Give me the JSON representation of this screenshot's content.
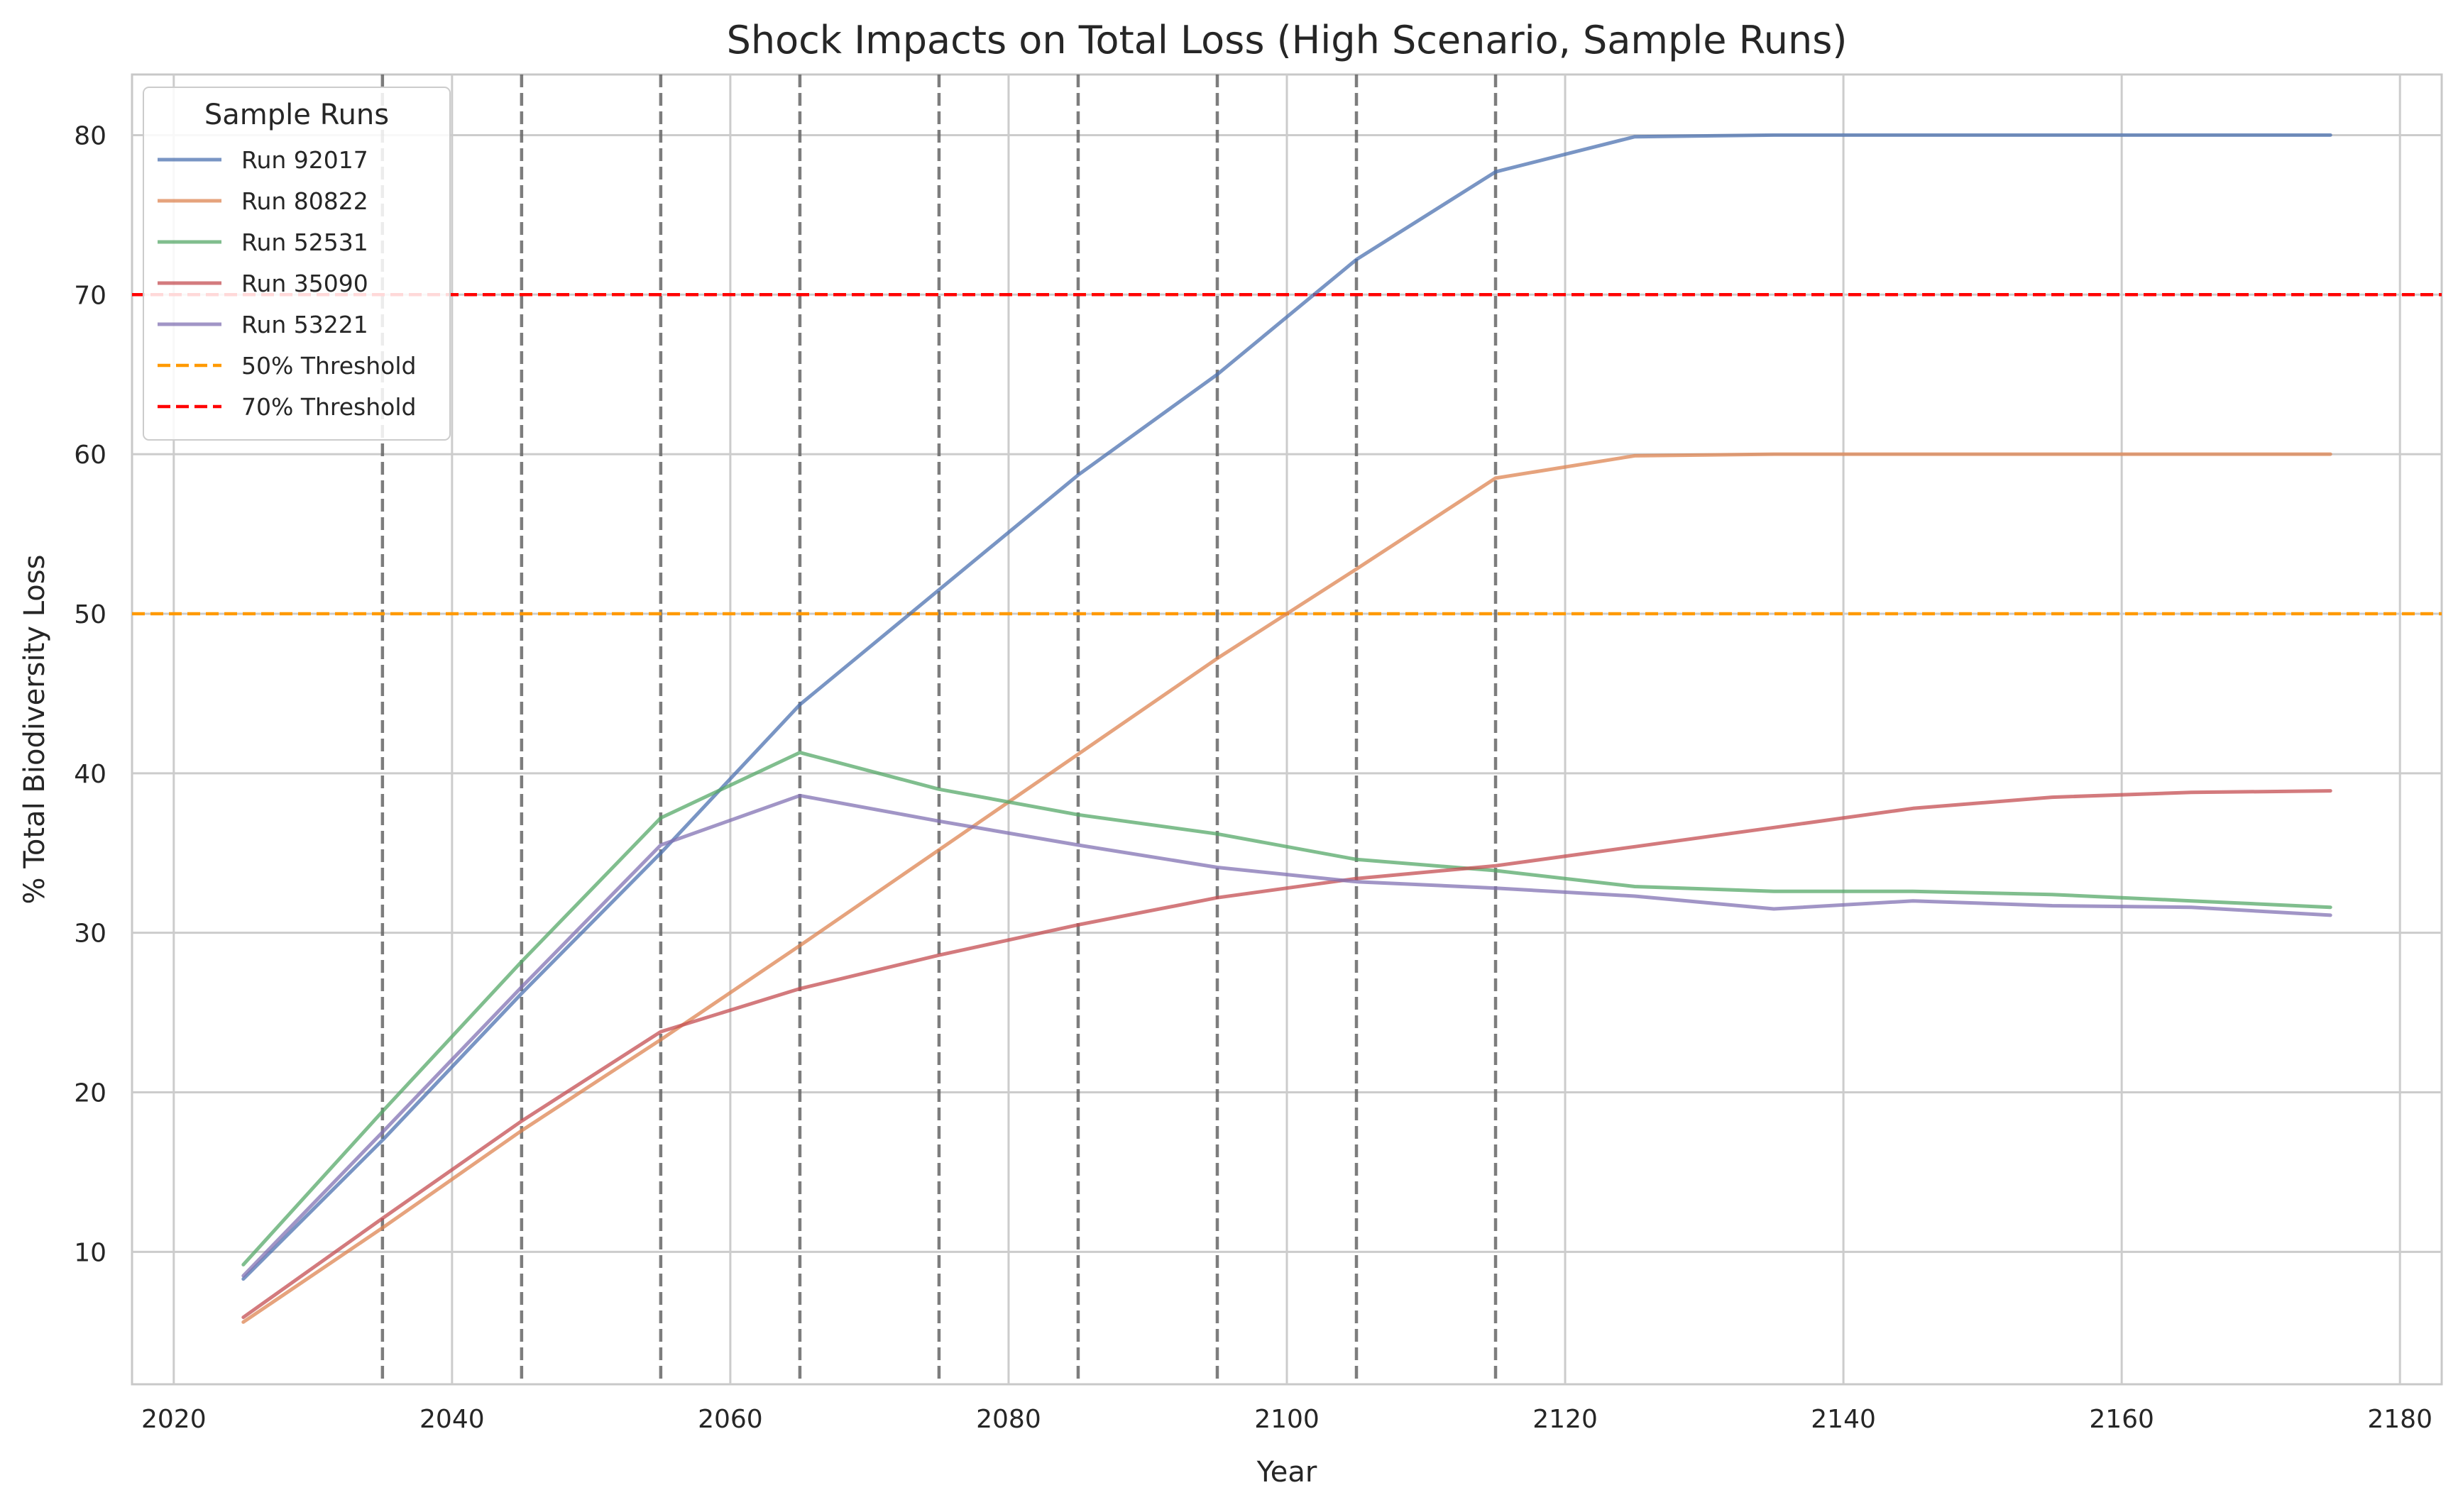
{
  "chart_data": {
    "type": "line",
    "title": "Shock Impacts on Total Loss (High Scenario, Sample Runs)",
    "xlabel": "Year",
    "ylabel": "% Total Biodiversity Loss",
    "xlim": [
      2017,
      2183
    ],
    "ylim": [
      1.7,
      83.8
    ],
    "xticks": [
      2020,
      2040,
      2060,
      2080,
      2100,
      2120,
      2140,
      2160,
      2180
    ],
    "yticks": [
      10,
      20,
      30,
      40,
      50,
      60,
      70,
      80
    ],
    "grid": true,
    "legend": {
      "title": "Sample Runs",
      "placement": "top-left"
    },
    "x": [
      2025,
      2035,
      2045,
      2055,
      2065,
      2075,
      2085,
      2095,
      2105,
      2115,
      2125,
      2135,
      2145,
      2155,
      2165,
      2175
    ],
    "series": [
      {
        "name": "Run 92017",
        "color": "#4c72b0",
        "values": [
          8.3,
          17.0,
          26.2,
          35.0,
          44.3,
          51.5,
          58.7,
          65.0,
          72.2,
          77.7,
          79.9,
          80.0,
          80.0,
          80.0,
          80.0,
          80.0
        ]
      },
      {
        "name": "Run 80822",
        "color": "#dd8452",
        "values": [
          5.6,
          11.5,
          17.6,
          23.3,
          29.2,
          35.2,
          41.2,
          47.2,
          52.8,
          58.5,
          59.9,
          60.0,
          60.0,
          60.0,
          60.0,
          60.0
        ]
      },
      {
        "name": "Run 52531",
        "color": "#55a868",
        "values": [
          9.2,
          18.8,
          28.2,
          37.2,
          41.3,
          39.0,
          37.4,
          36.2,
          34.6,
          33.9,
          32.9,
          32.6,
          32.6,
          32.4,
          32.0,
          31.6
        ]
      },
      {
        "name": "Run 35090",
        "color": "#c44e52",
        "values": [
          5.9,
          12.1,
          18.2,
          23.8,
          26.5,
          28.6,
          30.5,
          32.2,
          33.4,
          34.2,
          35.4,
          36.6,
          37.8,
          38.5,
          38.8,
          38.9
        ]
      },
      {
        "name": "Run 53221",
        "color": "#8172b3",
        "values": [
          8.5,
          17.5,
          26.6,
          35.5,
          38.6,
          37.0,
          35.5,
          34.1,
          33.2,
          32.8,
          32.3,
          31.5,
          32.0,
          31.7,
          31.6,
          31.1
        ]
      }
    ],
    "thresholds": [
      {
        "name": "50% Threshold",
        "value": 50,
        "color": "#ff9900"
      },
      {
        "name": "70% Threshold",
        "value": 70,
        "color": "#ff0000"
      }
    ],
    "shock_years": [
      2035,
      2045,
      2055,
      2065,
      2075,
      2085,
      2095,
      2105,
      2115
    ],
    "shock_color": "#666666"
  }
}
